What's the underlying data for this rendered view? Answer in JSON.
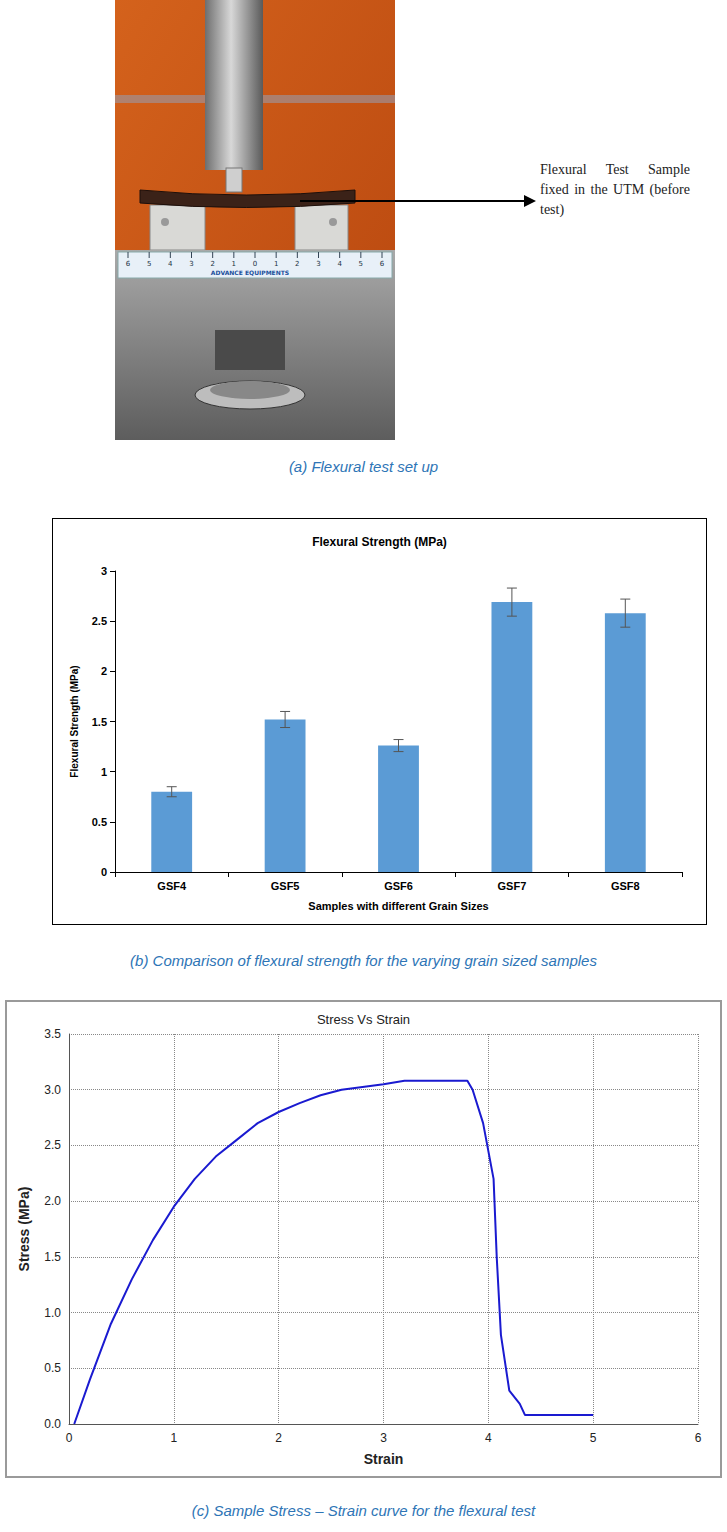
{
  "photo": {
    "annotation": "Flexural Test Sample fixed in the UTM (before test)",
    "ruler_brand": "ADVANCE EQUIPMENTS",
    "ruler_labels": [
      "6",
      "5",
      "4",
      "3",
      "2",
      "1",
      "0",
      "1",
      "2",
      "3",
      "4",
      "5",
      "6"
    ],
    "caption": "(a) Flexural test set up"
  },
  "chart_data": [
    {
      "type": "bar",
      "title": "Flexural Strength (MPa)",
      "x_label": "Samples with different Grain Sizes",
      "y_label": "Flexural Strength (MPa)",
      "categories": [
        "GSF4",
        "GSF5",
        "GSF6",
        "GSF7",
        "GSF8"
      ],
      "values": [
        0.8,
        1.52,
        1.26,
        2.69,
        2.58
      ],
      "errors": [
        0.05,
        0.08,
        0.06,
        0.14,
        0.14
      ],
      "color": "#5b9bd5",
      "ylim": [
        0,
        3
      ],
      "yticks": [
        0,
        0.5,
        1,
        1.5,
        2,
        2.5,
        3
      ],
      "grid": false,
      "caption": "(b) Comparison of flexural strength for the varying grain sized samples"
    },
    {
      "type": "line",
      "title": "Stress Vs Strain",
      "x_label": "Strain",
      "y_label": "Stress (MPa)",
      "x": [
        0.05,
        0.2,
        0.4,
        0.6,
        0.8,
        1.0,
        1.2,
        1.4,
        1.6,
        1.8,
        2.0,
        2.2,
        2.4,
        2.6,
        3.0,
        3.2,
        3.8,
        3.85,
        3.95,
        4.05,
        4.08,
        4.12,
        4.2,
        4.3,
        4.35,
        5.0
      ],
      "values": [
        0,
        0.4,
        0.9,
        1.3,
        1.65,
        1.95,
        2.2,
        2.4,
        2.55,
        2.7,
        2.8,
        2.88,
        2.95,
        3.0,
        3.05,
        3.08,
        3.08,
        3.0,
        2.7,
        2.2,
        1.5,
        0.8,
        0.3,
        0.18,
        0.08,
        0.08
      ],
      "color": "#1a1ad0",
      "xlim": [
        0,
        6
      ],
      "xticks": [
        0,
        1,
        2,
        3,
        4,
        5,
        6
      ],
      "ylim": [
        0,
        3.5
      ],
      "yticks": [
        {
          "value": 0,
          "label": "0.0"
        },
        {
          "value": 0.5,
          "label": "0.5"
        },
        {
          "value": 1,
          "label": "1.0"
        },
        {
          "value": 1.5,
          "label": "1.5"
        },
        {
          "value": 2,
          "label": "2.0"
        },
        {
          "value": 2.5,
          "label": "2.5"
        },
        {
          "value": 3,
          "label": "3.0"
        },
        {
          "value": 3.5,
          "label": "3.5"
        }
      ],
      "grid": true,
      "caption": "(c) Sample Stress – Strain curve for the flexural test"
    }
  ]
}
